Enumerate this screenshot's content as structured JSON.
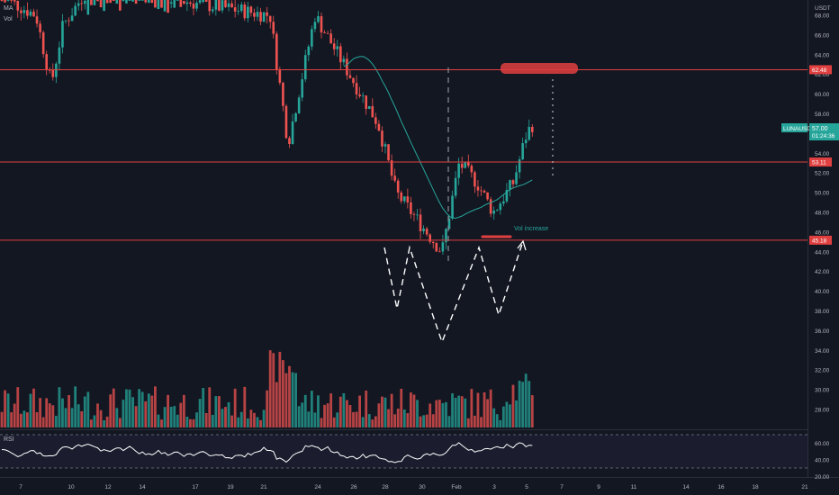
{
  "legend": {
    "ma": "MA",
    "vol": "Vol"
  },
  "price_axis": {
    "currency": "USDT",
    "ticks": [
      "68.00",
      "66.00",
      "64.00",
      "62.00",
      "60.00",
      "58.00",
      "56.00",
      "54.00",
      "52.00",
      "50.00",
      "48.00",
      "46.00",
      "44.00",
      "42.00",
      "40.00",
      "38.00",
      "36.00",
      "34.00",
      "32.00",
      "30.00",
      "28.00"
    ]
  },
  "rsi": {
    "label": "RSI",
    "ticks": [
      "60.00",
      "40.00",
      "20.00"
    ],
    "levels": [
      70,
      30
    ]
  },
  "time_axis": {
    "labels": [
      "7",
      "10",
      "12",
      "14",
      "17",
      "19",
      "21",
      "24",
      "26",
      "28",
      "30",
      "Feb",
      "3",
      "5",
      "7",
      "9",
      "11",
      "14",
      "16",
      "18",
      "21"
    ]
  },
  "horizontal_levels": [
    {
      "price": 62.48,
      "label": "62.48",
      "color": "#e04040"
    },
    {
      "price": 53.11,
      "label": "53.11",
      "color": "#e04040"
    },
    {
      "price": 45.18,
      "label": "45.18",
      "color": "#e04040"
    }
  ],
  "current_price": {
    "symbol": "LUNAUSDT",
    "price": "57.00",
    "countdown": "01:24:36",
    "color": "#26a69a"
  },
  "annotations": {
    "vol_increase": "Vol increase"
  },
  "colors": {
    "up": "#26a69a",
    "down": "#ef5350",
    "ma": "#26a69a",
    "rsi": "#ffffff",
    "background": "#131722"
  },
  "chart_data": {
    "type": "candlestick",
    "symbol": "LUNAUSDT",
    "quote": "USDT",
    "y_range": [
      28,
      68
    ],
    "rsi_range": [
      20,
      70
    ],
    "key_points": [
      {
        "date": "Jan 21",
        "price": 68
      },
      {
        "date": "Jan 22",
        "price": 53
      },
      {
        "date": "Jan 23",
        "price": 68
      },
      {
        "date": "Jan 27",
        "price": 56
      },
      {
        "date": "Jan 28",
        "price": 50
      },
      {
        "date": "Jan 31",
        "price": 44
      },
      {
        "date": "Feb 1",
        "price": 54
      },
      {
        "date": "Feb 3",
        "price": 47
      },
      {
        "date": "Feb 5",
        "price": 57
      }
    ]
  }
}
